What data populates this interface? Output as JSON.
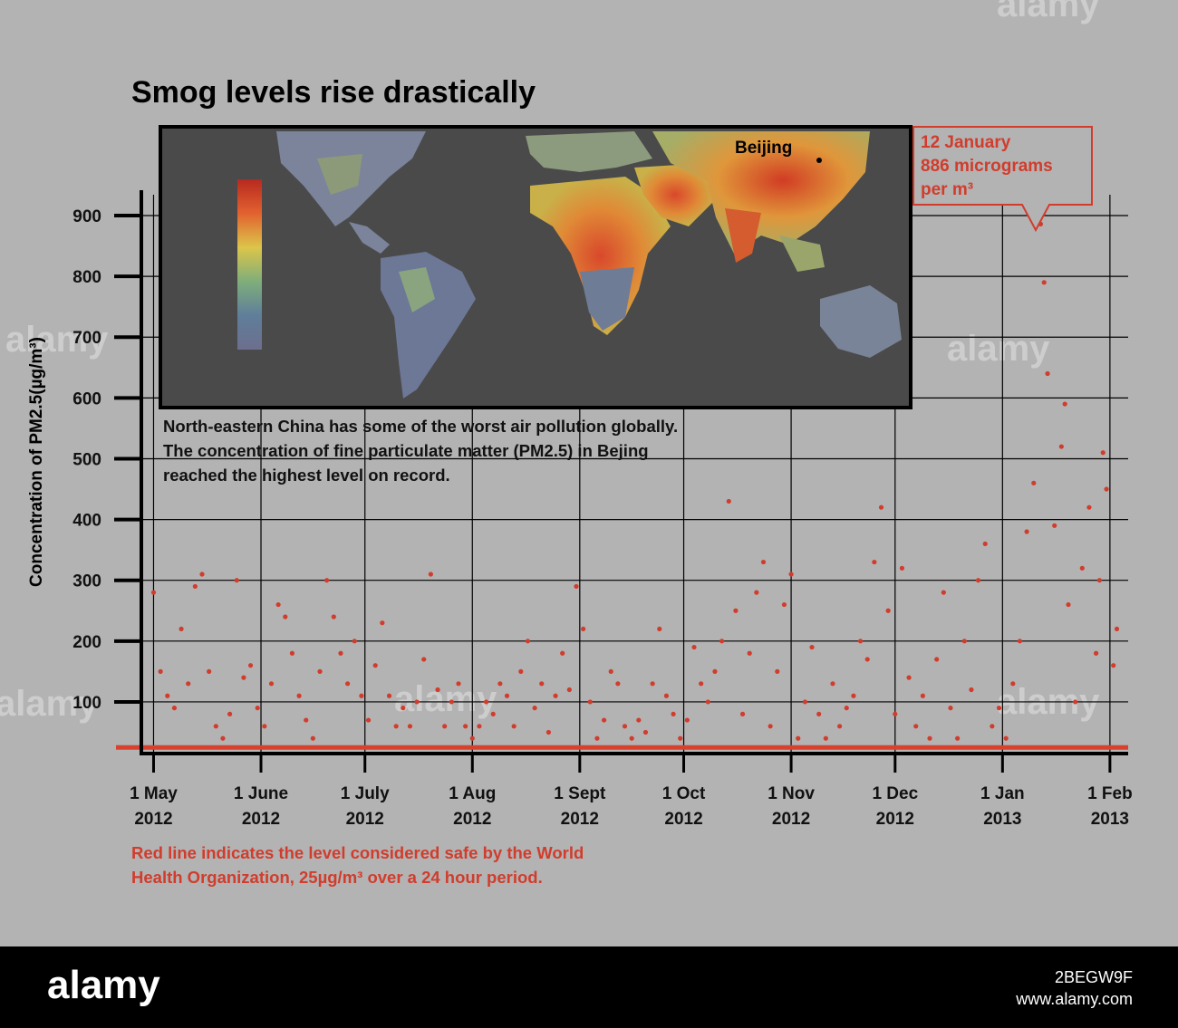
{
  "title": "Smog levels rise drastically",
  "y_axis_label": "Concentration of PM2.5(µg/m³)",
  "description_lines": [
    "North-eastern China has some of the worst air pollution globally.",
    "The concentration of fine particulate matter (PM2.5) in Bejing",
    "reached the highest level on record."
  ],
  "map": {
    "city_label": "Beijing"
  },
  "callout_lines": [
    "12 January",
    "886 micrograms",
    "per m³"
  ],
  "note_lines": [
    "Red line indicates the level considered safe by the World",
    "Health Organization, 25µg/m³ over a 24 hour period."
  ],
  "watermarks": [
    "alamy",
    "alamy",
    "alamy",
    "alamy",
    "alamy",
    "alamy"
  ],
  "footer": {
    "logo": "alamy",
    "image_id": "2BEGW9F",
    "site": "www.alamy.com"
  },
  "colors": {
    "background": "#b3b3b3",
    "points": "#d13c2c",
    "safe_line": "#d9412f",
    "map_bg": "#4a4a4a"
  },
  "chart_data": {
    "type": "scatter",
    "title": "Smog levels rise drastically",
    "ylabel": "Concentration of PM2.5(µg/m³)",
    "xlabel": "",
    "ylim": [
      15,
      950
    ],
    "xlim": [
      "2012-04-28",
      "2013-02-06"
    ],
    "y_ticks": [
      100,
      200,
      300,
      400,
      500,
      600,
      700,
      800,
      900
    ],
    "x_ticks": [
      {
        "date": "2012-05-01",
        "label": [
          "1 May",
          "2012"
        ]
      },
      {
        "date": "2012-06-01",
        "label": [
          "1 June",
          "2012"
        ]
      },
      {
        "date": "2012-07-01",
        "label": [
          "1 July",
          "2012"
        ]
      },
      {
        "date": "2012-08-01",
        "label": [
          "1 Aug",
          "2012"
        ]
      },
      {
        "date": "2012-09-01",
        "label": [
          "1 Sept",
          "2012"
        ]
      },
      {
        "date": "2012-10-01",
        "label": [
          "1 Oct",
          "2012"
        ]
      },
      {
        "date": "2012-11-01",
        "label": [
          "1 Nov",
          "2012"
        ]
      },
      {
        "date": "2012-12-01",
        "label": [
          "1 Dec",
          "2012"
        ]
      },
      {
        "date": "2013-01-01",
        "label": [
          "1 Jan",
          "2013"
        ]
      },
      {
        "date": "2013-02-01",
        "label": [
          "1 Feb",
          "2013"
        ]
      }
    ],
    "safe_level": 25,
    "grid": true,
    "series": [
      {
        "values": [
          [
            "2012-05-01",
            280
          ],
          [
            "2012-05-03",
            150
          ],
          [
            "2012-05-05",
            110
          ],
          [
            "2012-05-07",
            90
          ],
          [
            "2012-05-09",
            220
          ],
          [
            "2012-05-11",
            130
          ],
          [
            "2012-05-13",
            290
          ],
          [
            "2012-05-15",
            310
          ],
          [
            "2012-05-17",
            150
          ],
          [
            "2012-05-19",
            60
          ],
          [
            "2012-05-21",
            40
          ],
          [
            "2012-05-23",
            80
          ],
          [
            "2012-05-25",
            300
          ],
          [
            "2012-05-27",
            140
          ],
          [
            "2012-05-29",
            160
          ],
          [
            "2012-05-31",
            90
          ],
          [
            "2012-06-02",
            60
          ],
          [
            "2012-06-04",
            130
          ],
          [
            "2012-06-06",
            260
          ],
          [
            "2012-06-08",
            240
          ],
          [
            "2012-06-10",
            180
          ],
          [
            "2012-06-12",
            110
          ],
          [
            "2012-06-14",
            70
          ],
          [
            "2012-06-16",
            40
          ],
          [
            "2012-06-18",
            150
          ],
          [
            "2012-06-20",
            300
          ],
          [
            "2012-06-22",
            240
          ],
          [
            "2012-06-24",
            180
          ],
          [
            "2012-06-26",
            130
          ],
          [
            "2012-06-28",
            200
          ],
          [
            "2012-06-30",
            110
          ],
          [
            "2012-07-02",
            70
          ],
          [
            "2012-07-04",
            160
          ],
          [
            "2012-07-06",
            230
          ],
          [
            "2012-07-08",
            110
          ],
          [
            "2012-07-10",
            60
          ],
          [
            "2012-07-12",
            90
          ],
          [
            "2012-07-14",
            60
          ],
          [
            "2012-07-16",
            100
          ],
          [
            "2012-07-18",
            170
          ],
          [
            "2012-07-20",
            310
          ],
          [
            "2012-07-22",
            120
          ],
          [
            "2012-07-24",
            60
          ],
          [
            "2012-07-26",
            100
          ],
          [
            "2012-07-28",
            130
          ],
          [
            "2012-07-30",
            60
          ],
          [
            "2012-08-01",
            40
          ],
          [
            "2012-08-03",
            60
          ],
          [
            "2012-08-05",
            100
          ],
          [
            "2012-08-07",
            80
          ],
          [
            "2012-08-09",
            130
          ],
          [
            "2012-08-11",
            110
          ],
          [
            "2012-08-13",
            60
          ],
          [
            "2012-08-15",
            150
          ],
          [
            "2012-08-17",
            200
          ],
          [
            "2012-08-19",
            90
          ],
          [
            "2012-08-21",
            130
          ],
          [
            "2012-08-23",
            50
          ],
          [
            "2012-08-25",
            110
          ],
          [
            "2012-08-27",
            180
          ],
          [
            "2012-08-29",
            120
          ],
          [
            "2012-08-31",
            290
          ],
          [
            "2012-09-02",
            220
          ],
          [
            "2012-09-04",
            100
          ],
          [
            "2012-09-06",
            40
          ],
          [
            "2012-09-08",
            70
          ],
          [
            "2012-09-10",
            150
          ],
          [
            "2012-09-12",
            130
          ],
          [
            "2012-09-14",
            60
          ],
          [
            "2012-09-16",
            40
          ],
          [
            "2012-09-18",
            70
          ],
          [
            "2012-09-20",
            50
          ],
          [
            "2012-09-22",
            130
          ],
          [
            "2012-09-24",
            220
          ],
          [
            "2012-09-26",
            110
          ],
          [
            "2012-09-28",
            80
          ],
          [
            "2012-09-30",
            40
          ],
          [
            "2012-10-02",
            70
          ],
          [
            "2012-10-04",
            190
          ],
          [
            "2012-10-06",
            130
          ],
          [
            "2012-10-08",
            100
          ],
          [
            "2012-10-10",
            150
          ],
          [
            "2012-10-12",
            200
          ],
          [
            "2012-10-14",
            430
          ],
          [
            "2012-10-16",
            250
          ],
          [
            "2012-10-18",
            80
          ],
          [
            "2012-10-20",
            180
          ],
          [
            "2012-10-22",
            280
          ],
          [
            "2012-10-24",
            330
          ],
          [
            "2012-10-26",
            60
          ],
          [
            "2012-10-28",
            150
          ],
          [
            "2012-10-30",
            260
          ],
          [
            "2012-11-01",
            310
          ],
          [
            "2012-11-03",
            40
          ],
          [
            "2012-11-05",
            100
          ],
          [
            "2012-11-07",
            190
          ],
          [
            "2012-11-09",
            80
          ],
          [
            "2012-11-11",
            40
          ],
          [
            "2012-11-13",
            130
          ],
          [
            "2012-11-15",
            60
          ],
          [
            "2012-11-17",
            90
          ],
          [
            "2012-11-19",
            110
          ],
          [
            "2012-11-21",
            200
          ],
          [
            "2012-11-23",
            170
          ],
          [
            "2012-11-25",
            330
          ],
          [
            "2012-11-27",
            420
          ],
          [
            "2012-11-29",
            250
          ],
          [
            "2012-12-01",
            80
          ],
          [
            "2012-12-03",
            320
          ],
          [
            "2012-12-05",
            140
          ],
          [
            "2012-12-07",
            60
          ],
          [
            "2012-12-09",
            110
          ],
          [
            "2012-12-11",
            40
          ],
          [
            "2012-12-13",
            170
          ],
          [
            "2012-12-15",
            280
          ],
          [
            "2012-12-17",
            90
          ],
          [
            "2012-12-19",
            40
          ],
          [
            "2012-12-21",
            200
          ],
          [
            "2012-12-23",
            120
          ],
          [
            "2012-12-25",
            300
          ],
          [
            "2012-12-27",
            360
          ],
          [
            "2012-12-29",
            60
          ],
          [
            "2012-12-31",
            90
          ],
          [
            "2013-01-02",
            40
          ],
          [
            "2013-01-04",
            130
          ],
          [
            "2013-01-06",
            200
          ],
          [
            "2013-01-08",
            380
          ],
          [
            "2013-01-10",
            460
          ],
          [
            "2013-01-12",
            886
          ],
          [
            "2013-01-13",
            790
          ],
          [
            "2013-01-14",
            640
          ],
          [
            "2013-01-16",
            390
          ],
          [
            "2013-01-18",
            520
          ],
          [
            "2013-01-19",
            590
          ],
          [
            "2013-01-20",
            260
          ],
          [
            "2013-01-22",
            100
          ],
          [
            "2013-01-24",
            320
          ],
          [
            "2013-01-26",
            420
          ],
          [
            "2013-01-28",
            180
          ],
          [
            "2013-01-29",
            300
          ],
          [
            "2013-01-30",
            510
          ],
          [
            "2013-01-31",
            450
          ],
          [
            "2013-02-02",
            160
          ],
          [
            "2013-02-03",
            220
          ]
        ]
      }
    ]
  }
}
